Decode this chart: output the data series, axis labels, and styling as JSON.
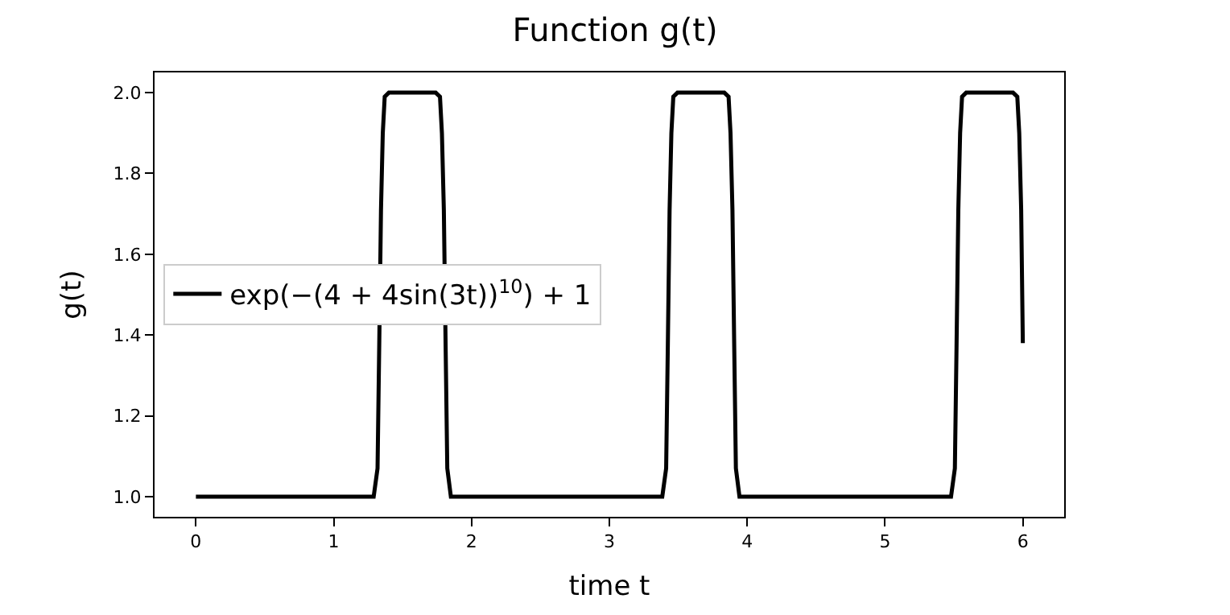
{
  "chart_data": {
    "type": "line",
    "title": "Function g(t)",
    "xlabel": "time t",
    "ylabel": "g(t)",
    "series": [
      {
        "name": "exp(−(4 + 4sin(3t))$^{10}$) + 1",
        "color": "#000000",
        "x": [
          0,
          1.29,
          1.318,
          1.33,
          1.343,
          1.356,
          1.37,
          1.4,
          1.74,
          1.771,
          1.785,
          1.799,
          1.812,
          1.824,
          1.85,
          3.384,
          3.412,
          3.424,
          3.437,
          3.45,
          3.464,
          3.494,
          3.834,
          3.865,
          3.879,
          3.893,
          3.906,
          3.918,
          3.944,
          5.479,
          5.507,
          5.519,
          5.532,
          5.545,
          5.559,
          5.589,
          5.929,
          5.96,
          5.974,
          5.988,
          6.0
        ],
        "values": [
          1,
          1,
          1.07,
          1.37,
          1.71,
          1.9,
          1.99,
          2,
          2,
          1.99,
          1.9,
          1.71,
          1.37,
          1.07,
          1,
          1,
          1.07,
          1.37,
          1.71,
          1.9,
          1.99,
          2,
          2,
          1.99,
          1.9,
          1.71,
          1.37,
          1.07,
          1,
          1,
          1.07,
          1.37,
          1.71,
          1.9,
          1.99,
          2,
          2,
          1.99,
          1.9,
          1.71,
          1.38
        ]
      }
    ],
    "xlim": [
      -0.3,
      6.3
    ],
    "xticks": [
      0,
      1,
      2,
      3,
      4,
      5,
      6
    ],
    "ylim": [
      0.95,
      2.05
    ],
    "yticks": [
      {
        "value": 1.0,
        "label": "1.0"
      },
      1.2,
      1.4,
      1.6,
      1.8,
      {
        "value": 2.0,
        "label": "2.0"
      }
    ],
    "legend": "center left",
    "marker": "none",
    "line_style": "solid"
  }
}
